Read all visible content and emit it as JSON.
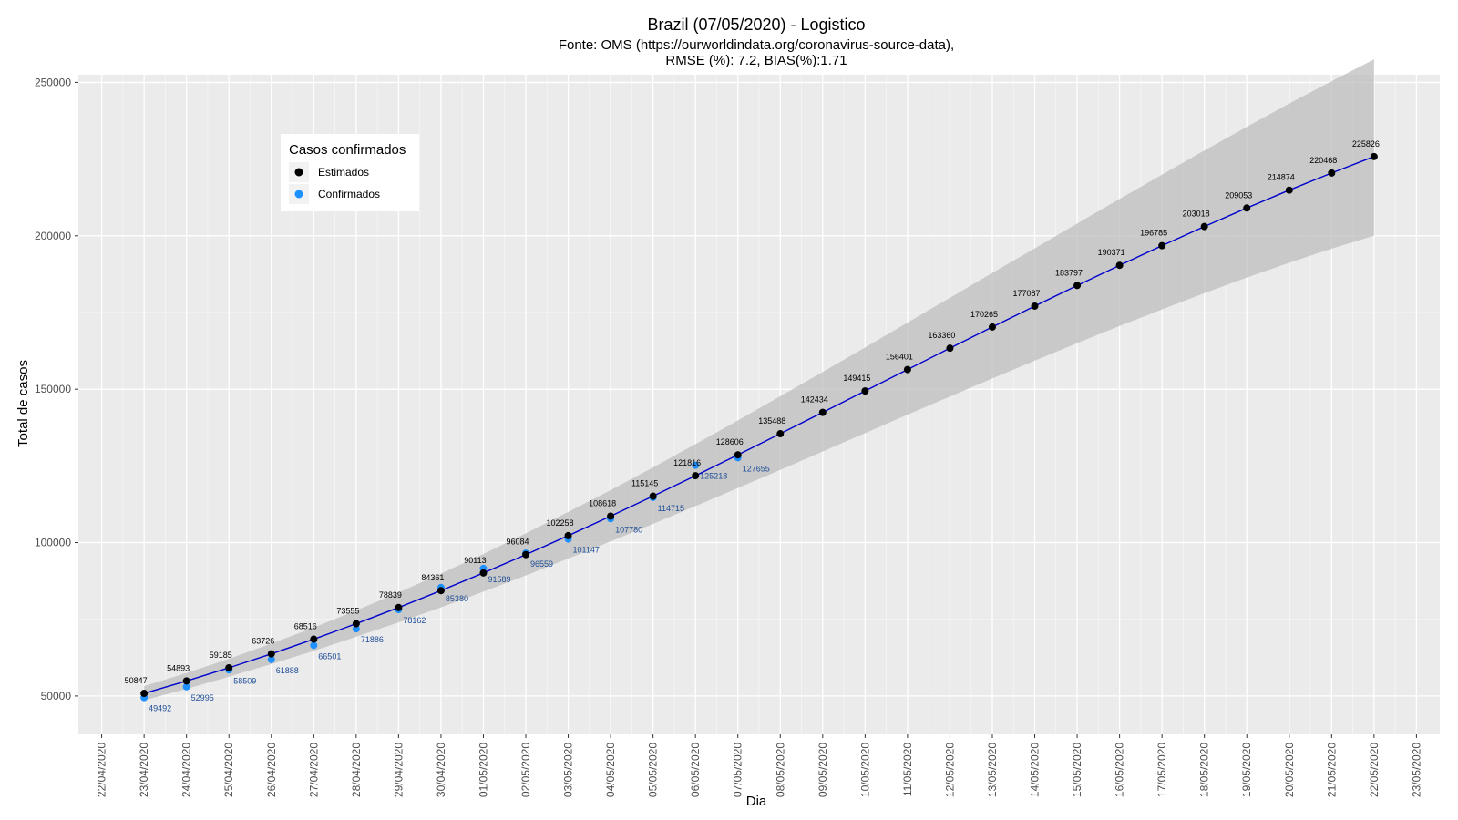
{
  "chart_data": {
    "type": "line",
    "title": "Brazil (07/05/2020) - Logistico",
    "subtitle_line1": "Fonte: OMS (https://ourworldindata.org/coronavirus-source-data),",
    "subtitle_line2": "RMSE (%): 7.2, BIAS(%):1.71",
    "xlabel": "Dia",
    "ylabel": "Total de casos",
    "ylim": [
      37500,
      252500
    ],
    "y_ticks": [
      50000,
      100000,
      150000,
      200000,
      250000
    ],
    "y_tick_labels": [
      "50000",
      "100000",
      "150000",
      "200000",
      "250000"
    ],
    "x_tick_labels": [
      "22/04/2020",
      "23/04/2020",
      "24/04/2020",
      "25/04/2020",
      "26/04/2020",
      "27/04/2020",
      "28/04/2020",
      "29/04/2020",
      "30/04/2020",
      "01/05/2020",
      "02/05/2020",
      "03/05/2020",
      "04/05/2020",
      "05/05/2020",
      "06/05/2020",
      "07/05/2020",
      "08/05/2020",
      "09/05/2020",
      "10/05/2020",
      "11/05/2020",
      "12/05/2020",
      "13/05/2020",
      "14/05/2020",
      "15/05/2020",
      "16/05/2020",
      "17/05/2020",
      "18/05/2020",
      "19/05/2020",
      "20/05/2020",
      "21/05/2020",
      "22/05/2020",
      "23/05/2020"
    ],
    "grid": true,
    "legend": {
      "title": "Casos confirmados",
      "position": "top-left",
      "entries": [
        {
          "label": "Estimados",
          "color": "#000000"
        },
        {
          "label": "Confirmados",
          "color": "#1e90ff"
        }
      ]
    },
    "series": [
      {
        "name": "Estimados",
        "color": "#000000",
        "line_color": "#0000cd",
        "x": [
          "23/04/2020",
          "24/04/2020",
          "25/04/2020",
          "26/04/2020",
          "27/04/2020",
          "28/04/2020",
          "29/04/2020",
          "30/04/2020",
          "01/05/2020",
          "02/05/2020",
          "03/05/2020",
          "04/05/2020",
          "05/05/2020",
          "06/05/2020",
          "07/05/2020",
          "08/05/2020",
          "09/05/2020",
          "10/05/2020",
          "11/05/2020",
          "12/05/2020",
          "13/05/2020",
          "14/05/2020",
          "15/05/2020",
          "16/05/2020",
          "17/05/2020",
          "18/05/2020",
          "19/05/2020",
          "20/05/2020",
          "21/05/2020",
          "22/05/2020"
        ],
        "values": [
          50847,
          54893,
          59185,
          63726,
          68516,
          73555,
          78839,
          84361,
          90113,
          96084,
          102258,
          108618,
          115145,
          121816,
          128606,
          135488,
          142434,
          149415,
          156401,
          163360,
          170265,
          177087,
          183797,
          190371,
          196785,
          203018,
          209053,
          214874,
          220468,
          225826
        ],
        "ci_lower": [
          48600,
          52300,
          56300,
          60400,
          64700,
          69300,
          74000,
          78900,
          84000,
          89300,
          94800,
          100400,
          106100,
          111900,
          117800,
          123700,
          129700,
          135700,
          141700,
          147600,
          153500,
          159300,
          165000,
          170600,
          176000,
          181300,
          186400,
          191200,
          195800,
          200000
        ],
        "ci_upper": [
          53200,
          57500,
          62100,
          67100,
          72300,
          77900,
          83700,
          89900,
          96300,
          103000,
          110000,
          117100,
          124500,
          132100,
          139800,
          147700,
          155600,
          163600,
          171700,
          179800,
          187900,
          195900,
          204000,
          212000,
          219900,
          227800,
          235500,
          243100,
          250400,
          257500
        ]
      },
      {
        "name": "Confirmados",
        "color": "#1e90ff",
        "x": [
          "23/04/2020",
          "24/04/2020",
          "25/04/2020",
          "26/04/2020",
          "27/04/2020",
          "28/04/2020",
          "29/04/2020",
          "30/04/2020",
          "01/05/2020",
          "02/05/2020",
          "03/05/2020",
          "04/05/2020",
          "05/05/2020",
          "06/05/2020",
          "07/05/2020"
        ],
        "values": [
          49492,
          52995,
          58509,
          61888,
          66501,
          71886,
          78162,
          85380,
          91589,
          96559,
          101147,
          107780,
          114715,
          125218,
          127655
        ]
      }
    ]
  }
}
